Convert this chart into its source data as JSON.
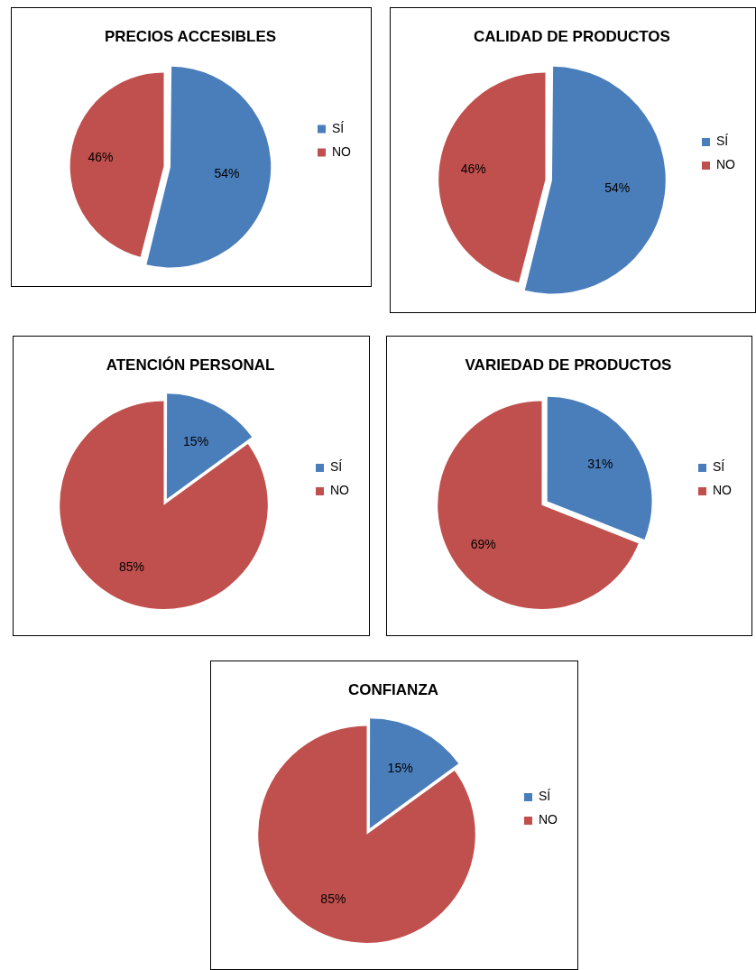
{
  "chart_data": [
    {
      "type": "pie",
      "title": "PRECIOS ACCESIBLES",
      "categories": [
        "SÍ",
        "NO"
      ],
      "values": [
        54,
        46
      ],
      "value_labels": [
        "54%",
        "46%"
      ],
      "colors": [
        "#4a7ebb",
        "#c0504d"
      ],
      "legend": "right"
    },
    {
      "type": "pie",
      "title": "CALIDAD DE PRODUCTOS",
      "categories": [
        "SÍ",
        "NO"
      ],
      "values": [
        54,
        46
      ],
      "value_labels": [
        "54%",
        "46%"
      ],
      "colors": [
        "#4a7ebb",
        "#c0504d"
      ],
      "legend": "right"
    },
    {
      "type": "pie",
      "title": "ATENCIÓN PERSONAL",
      "categories": [
        "SÍ",
        "NO"
      ],
      "values": [
        15,
        85
      ],
      "value_labels": [
        "15%",
        "85%"
      ],
      "colors": [
        "#4a7ebb",
        "#c0504d"
      ],
      "legend": "right"
    },
    {
      "type": "pie",
      "title": "VARIEDAD DE PRODUCTOS",
      "categories": [
        "SÍ",
        "NO"
      ],
      "values": [
        31,
        69
      ],
      "value_labels": [
        "31%",
        "69%"
      ],
      "colors": [
        "#4a7ebb",
        "#c0504d"
      ],
      "legend": "right"
    },
    {
      "type": "pie",
      "title": "CONFIANZA",
      "categories": [
        "SÍ",
        "NO"
      ],
      "values": [
        15,
        85
      ],
      "value_labels": [
        "15%",
        "85%"
      ],
      "colors": [
        "#4a7ebb",
        "#c0504d"
      ],
      "legend": "right"
    }
  ]
}
